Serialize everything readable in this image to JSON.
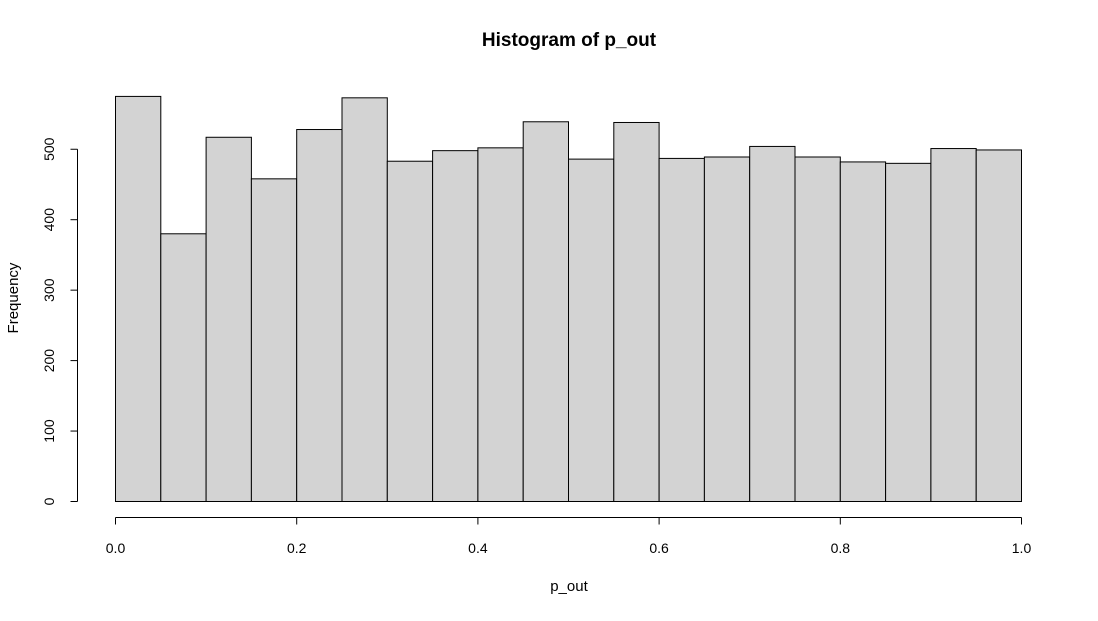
{
  "chart_data": {
    "type": "bar",
    "title": "Histogram of p_out",
    "xlabel": "p_out",
    "ylabel": "Frequency",
    "bin_edges": [
      0.0,
      0.05,
      0.1,
      0.15,
      0.2,
      0.25,
      0.3,
      0.35,
      0.4,
      0.45,
      0.5,
      0.55,
      0.6,
      0.65,
      0.7,
      0.75,
      0.8,
      0.85,
      0.9,
      0.95,
      1.0
    ],
    "values": [
      575,
      380,
      517,
      458,
      528,
      573,
      483,
      498,
      502,
      539,
      486,
      538,
      487,
      489,
      504,
      489,
      482,
      480,
      501,
      499
    ],
    "xlim": [
      0.0,
      1.0
    ],
    "ylim": [
      0,
      575
    ],
    "x_ticks": [
      0.0,
      0.2,
      0.4,
      0.6,
      0.8,
      1.0
    ],
    "x_tick_labels": [
      "0.0",
      "0.2",
      "0.4",
      "0.6",
      "0.8",
      "1.0"
    ],
    "y_ticks": [
      0,
      100,
      200,
      300,
      400,
      500
    ],
    "y_tick_labels": [
      "0",
      "100",
      "200",
      "300",
      "400",
      "500"
    ],
    "grid": false,
    "bar_fill": "#d3d3d3",
    "bar_stroke": "#000000"
  }
}
